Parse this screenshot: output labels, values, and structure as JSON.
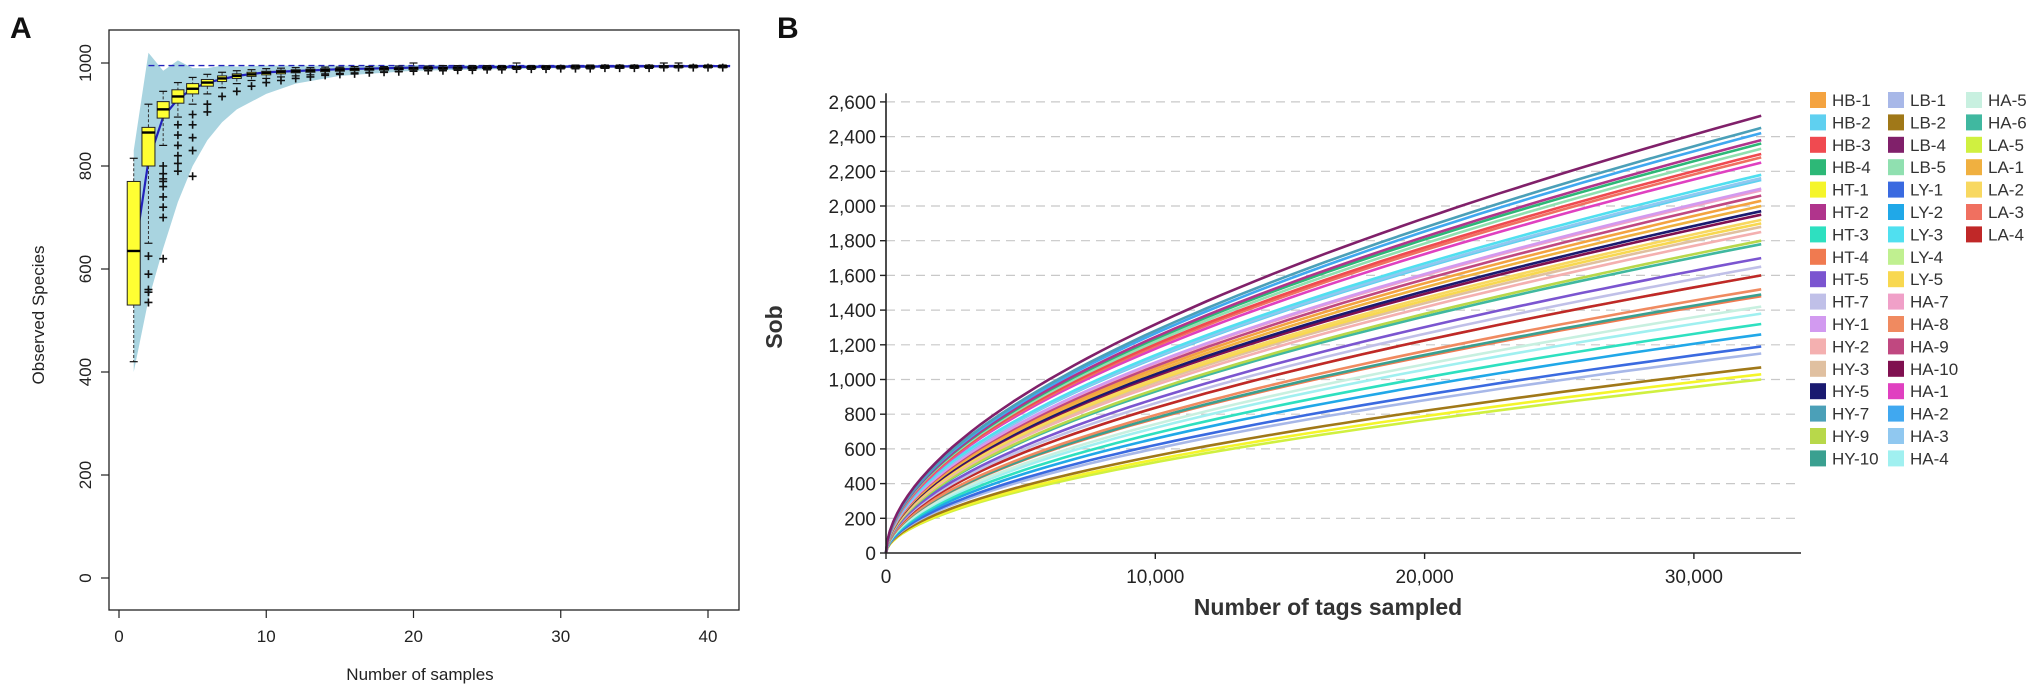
{
  "panels": {
    "a": "A",
    "b": "B"
  },
  "chart_data": [
    {
      "type": "box",
      "panel": "A",
      "title": "",
      "xlabel": "Number of samples",
      "ylabel": "Observed Species",
      "xlim": [
        0,
        42
      ],
      "ylim": [
        -20,
        1030
      ],
      "xticks": [
        0,
        10,
        20,
        30,
        40
      ],
      "yticks": [
        0,
        200,
        400,
        600,
        800,
        1000
      ],
      "colors": {
        "box": "#ffff33",
        "band": "#a9d4e0",
        "mean_line": "#2222bb",
        "median": "#000000"
      },
      "band": {
        "x": [
          1,
          2,
          3,
          4,
          5,
          6,
          7,
          8,
          10,
          12,
          15,
          20,
          30,
          41.5
        ],
        "lower": [
          400,
          540,
          640,
          730,
          800,
          850,
          885,
          910,
          940,
          960,
          975,
          985,
          990,
          993
        ],
        "upper": [
          830,
          1020,
          985,
          1005,
          990,
          990,
          995,
          993,
          995,
          995,
          995,
          996,
          996,
          996
        ]
      },
      "mean_curve": {
        "x": [
          1,
          2,
          3,
          4,
          5,
          6,
          8,
          10,
          15,
          20,
          30,
          41.5
        ],
        "y": [
          620,
          810,
          895,
          930,
          950,
          962,
          975,
          982,
          988,
          991,
          993,
          994
        ]
      },
      "boxes": [
        {
          "x": 1,
          "q1": 530,
          "median": 635,
          "q3": 770,
          "whisker_low": 420,
          "whisker_high": 815,
          "outliers": []
        },
        {
          "x": 2,
          "q1": 800,
          "median": 865,
          "q3": 875,
          "whisker_low": 650,
          "whisker_high": 920,
          "outliers": [
            625,
            590,
            560,
            555,
            535
          ]
        },
        {
          "x": 3,
          "q1": 893,
          "median": 910,
          "q3": 925,
          "whisker_low": 840,
          "whisker_high": 945,
          "outliers": [
            800,
            785,
            775,
            770,
            760,
            740,
            720,
            700,
            620
          ]
        },
        {
          "x": 4,
          "q1": 922,
          "median": 935,
          "q3": 948,
          "whisker_low": 895,
          "whisker_high": 962,
          "outliers": [
            880,
            860,
            840,
            820,
            805,
            790
          ]
        },
        {
          "x": 5,
          "q1": 940,
          "median": 950,
          "q3": 960,
          "whisker_low": 920,
          "whisker_high": 972,
          "outliers": [
            900,
            880,
            855,
            830,
            780
          ]
        },
        {
          "x": 6,
          "q1": 955,
          "median": 962,
          "q3": 968,
          "whisker_low": 940,
          "whisker_high": 978,
          "outliers": [
            920,
            905
          ]
        },
        {
          "x": 7,
          "q1": 964,
          "median": 970,
          "q3": 975,
          "whisker_low": 952,
          "whisker_high": 982,
          "outliers": [
            935
          ]
        },
        {
          "x": 8,
          "q1": 970,
          "median": 975,
          "q3": 979,
          "whisker_low": 960,
          "whisker_high": 985,
          "outliers": [
            945
          ]
        },
        {
          "x": 9,
          "q1": 974,
          "median": 978,
          "q3": 982,
          "whisker_low": 966,
          "whisker_high": 987,
          "outliers": [
            955
          ]
        },
        {
          "x": 10,
          "q1": 977,
          "median": 981,
          "q3": 984,
          "whisker_low": 970,
          "whisker_high": 989,
          "outliers": [
            962
          ]
        },
        {
          "x": 11,
          "q1": 979,
          "median": 983,
          "q3": 986,
          "whisker_low": 973,
          "whisker_high": 990,
          "outliers": [
            966
          ]
        },
        {
          "x": 12,
          "q1": 981,
          "median": 984,
          "q3": 987,
          "whisker_low": 975,
          "whisker_high": 991,
          "outliers": [
            970
          ]
        },
        {
          "x": 13,
          "q1": 982,
          "median": 985,
          "q3": 988,
          "whisker_low": 977,
          "whisker_high": 991,
          "outliers": [
            973
          ]
        },
        {
          "x": 14,
          "q1": 983,
          "median": 986,
          "q3": 989,
          "whisker_low": 979,
          "whisker_high": 992,
          "outliers": [
            976
          ]
        },
        {
          "x": 15,
          "q1": 984,
          "median": 987,
          "q3": 990,
          "whisker_low": 980,
          "whisker_high": 992,
          "outliers": [
            978
          ]
        },
        {
          "x": 16,
          "q1": 985,
          "median": 988,
          "q3": 990,
          "whisker_low": 981,
          "whisker_high": 993,
          "outliers": [
            979
          ]
        },
        {
          "x": 17,
          "q1": 986,
          "median": 988,
          "q3": 990,
          "whisker_low": 982,
          "whisker_high": 993,
          "outliers": [
            981
          ]
        },
        {
          "x": 18,
          "q1": 986,
          "median": 989,
          "q3": 991,
          "whisker_low": 983,
          "whisker_high": 993,
          "outliers": [
            982
          ]
        },
        {
          "x": 19,
          "q1": 987,
          "median": 989,
          "q3": 991,
          "whisker_low": 984,
          "whisker_high": 994,
          "outliers": [
            983
          ]
        },
        {
          "x": 20,
          "q1": 987,
          "median": 990,
          "q3": 992,
          "whisker_low": 985,
          "whisker_high": 1000,
          "outliers": [
            984
          ]
        },
        {
          "x": 21,
          "q1": 988,
          "median": 990,
          "q3": 992,
          "whisker_low": 985,
          "whisker_high": 994,
          "outliers": [
            985
          ]
        },
        {
          "x": 22,
          "q1": 988,
          "median": 990,
          "q3": 992,
          "whisker_low": 986,
          "whisker_high": 995,
          "outliers": [
            985
          ]
        },
        {
          "x": 23,
          "q1": 989,
          "median": 991,
          "q3": 992,
          "whisker_low": 986,
          "whisker_high": 995,
          "outliers": [
            986
          ]
        },
        {
          "x": 24,
          "q1": 989,
          "median": 991,
          "q3": 993,
          "whisker_low": 987,
          "whisker_high": 995,
          "outliers": [
            986
          ]
        },
        {
          "x": 25,
          "q1": 989,
          "median": 991,
          "q3": 993,
          "whisker_low": 987,
          "whisker_high": 995,
          "outliers": [
            987
          ]
        },
        {
          "x": 26,
          "q1": 990,
          "median": 992,
          "q3": 993,
          "whisker_low": 988,
          "whisker_high": 995,
          "outliers": [
            987
          ]
        },
        {
          "x": 27,
          "q1": 990,
          "median": 992,
          "q3": 993,
          "whisker_low": 988,
          "whisker_high": 1000,
          "outliers": [
            988
          ]
        },
        {
          "x": 28,
          "q1": 990,
          "median": 992,
          "q3": 993,
          "whisker_low": 988,
          "whisker_high": 995,
          "outliers": [
            988
          ]
        },
        {
          "x": 29,
          "q1": 990,
          "median": 992,
          "q3": 994,
          "whisker_low": 989,
          "whisker_high": 995,
          "outliers": [
            988
          ]
        },
        {
          "x": 30,
          "q1": 991,
          "median": 992,
          "q3": 994,
          "whisker_low": 989,
          "whisker_high": 995,
          "outliers": [
            989
          ]
        },
        {
          "x": 31,
          "q1": 991,
          "median": 993,
          "q3": 994,
          "whisker_low": 989,
          "whisker_high": 996,
          "outliers": [
            989
          ]
        },
        {
          "x": 32,
          "q1": 991,
          "median": 993,
          "q3": 994,
          "whisker_low": 990,
          "whisker_high": 996,
          "outliers": [
            989
          ]
        },
        {
          "x": 33,
          "q1": 991,
          "median": 993,
          "q3": 994,
          "whisker_low": 990,
          "whisker_high": 996,
          "outliers": [
            990
          ]
        },
        {
          "x": 34,
          "q1": 992,
          "median": 993,
          "q3": 994,
          "whisker_low": 990,
          "whisker_high": 996,
          "outliers": [
            990
          ]
        },
        {
          "x": 35,
          "q1": 992,
          "median": 993,
          "q3": 994,
          "whisker_low": 990,
          "whisker_high": 996,
          "outliers": [
            990
          ]
        },
        {
          "x": 36,
          "q1": 992,
          "median": 993,
          "q3": 995,
          "whisker_low": 991,
          "whisker_high": 996,
          "outliers": [
            990
          ]
        },
        {
          "x": 37,
          "q1": 992,
          "median": 993,
          "q3": 995,
          "whisker_low": 991,
          "whisker_high": 1000,
          "outliers": [
            991
          ]
        },
        {
          "x": 38,
          "q1": 992,
          "median": 994,
          "q3": 995,
          "whisker_low": 991,
          "whisker_high": 1000,
          "outliers": [
            991
          ]
        },
        {
          "x": 39,
          "q1": 992,
          "median": 994,
          "q3": 995,
          "whisker_low": 991,
          "whisker_high": 996,
          "outliers": [
            991
          ]
        },
        {
          "x": 40,
          "q1": 993,
          "median": 994,
          "q3": 995,
          "whisker_low": 991,
          "whisker_high": 996,
          "outliers": [
            991
          ]
        },
        {
          "x": 41,
          "q1": 993,
          "median": 994,
          "q3": 995,
          "whisker_low": 992,
          "whisker_high": 996,
          "outliers": [
            991
          ]
        }
      ]
    },
    {
      "type": "line",
      "panel": "B",
      "title": "",
      "xlabel": "Number of tags sampled",
      "ylabel": "Sob",
      "xlim": [
        0,
        34000
      ],
      "ylim": [
        0,
        2650
      ],
      "xticks": [
        0,
        10000,
        20000,
        30000
      ],
      "xtick_labels": [
        "0",
        "10,000",
        "20,000",
        "30,000"
      ],
      "yticks": [
        0,
        200,
        400,
        600,
        800,
        1000,
        1200,
        1400,
        1600,
        1800,
        2000,
        2200,
        2400,
        2600
      ],
      "ytick_labels": [
        "0",
        "200",
        "400",
        "600",
        "800",
        "1,000",
        "1,200",
        "1,400",
        "1,600",
        "1,800",
        "2,000",
        "2,200",
        "2,400",
        "2,600"
      ],
      "grid": "horizontal dashed",
      "x_end": 32500,
      "curve_model": "y = final * (x / x_end)^0.55",
      "legend_position": "right",
      "series": [
        {
          "name": "HB-1",
          "color": "#f4a340",
          "final": 2030
        },
        {
          "name": "HB-2",
          "color": "#5fd0f0",
          "final": 2150
        },
        {
          "name": "HB-3",
          "color": "#f04a50",
          "final": 2300
        },
        {
          "name": "HB-4",
          "color": "#2db877",
          "final": 2360
        },
        {
          "name": "HT-1",
          "color": "#f5f52a",
          "final": 1030
        },
        {
          "name": "HT-2",
          "color": "#b0348c",
          "final": 2380
        },
        {
          "name": "HT-3",
          "color": "#2ee0c0",
          "final": 1320
        },
        {
          "name": "HT-4",
          "color": "#f07a50",
          "final": 1480
        },
        {
          "name": "HT-5",
          "color": "#7b55d0",
          "final": 1700
        },
        {
          "name": "HT-7",
          "color": "#c0c0e8",
          "final": 1650
        },
        {
          "name": "HY-1",
          "color": "#d29af0",
          "final": 2100
        },
        {
          "name": "HY-2",
          "color": "#f4b0b0",
          "final": 1850
        },
        {
          "name": "HY-3",
          "color": "#e0c0a0",
          "final": 1880
        },
        {
          "name": "HY-5",
          "color": "#1a1a70",
          "final": 1970
        },
        {
          "name": "HY-7",
          "color": "#4ba0b8",
          "final": 2450
        },
        {
          "name": "HY-9",
          "color": "#b8d84a",
          "final": 1800
        },
        {
          "name": "HY-10",
          "color": "#3aa090",
          "final": 1490
        },
        {
          "name": "LB-1",
          "color": "#a8b8e8",
          "final": 1150
        },
        {
          "name": "LB-2",
          "color": "#a07818",
          "final": 1070
        },
        {
          "name": "LB-4",
          "color": "#80206a",
          "final": 2520
        },
        {
          "name": "LB-5",
          "color": "#90e0b0",
          "final": 2330
        },
        {
          "name": "LY-1",
          "color": "#3a6ae0",
          "final": 1190
        },
        {
          "name": "LY-2",
          "color": "#20a8e8",
          "final": 1260
        },
        {
          "name": "LY-3",
          "color": "#50e0f0",
          "final": 2180
        },
        {
          "name": "LY-4",
          "color": "#c0f090",
          "final": 1600
        },
        {
          "name": "LY-5",
          "color": "#f8d850",
          "final": 1900
        },
        {
          "name": "HA-7",
          "color": "#f0a0c8",
          "final": 2090
        },
        {
          "name": "HA-8",
          "color": "#f08a60",
          "final": 1520
        },
        {
          "name": "HA-9",
          "color": "#c04880",
          "final": 2060
        },
        {
          "name": "HA-10",
          "color": "#801050",
          "final": 1950
        },
        {
          "name": "HA-1",
          "color": "#e040c0",
          "final": 2250
        },
        {
          "name": "HA-2",
          "color": "#40a8f0",
          "final": 2420
        },
        {
          "name": "HA-3",
          "color": "#90c8f0",
          "final": 2160
        },
        {
          "name": "HA-4",
          "color": "#a0f0f0",
          "final": 1380
        },
        {
          "name": "HA-5",
          "color": "#c8f0e0",
          "final": 1420
        },
        {
          "name": "HA-6",
          "color": "#40b8a0",
          "final": 1780
        },
        {
          "name": "LA-5",
          "color": "#d0f040",
          "final": 1000
        },
        {
          "name": "LA-1",
          "color": "#f0b040",
          "final": 2000
        },
        {
          "name": "LA-2",
          "color": "#f8d860",
          "final": 1920
        },
        {
          "name": "LA-3",
          "color": "#f07060",
          "final": 2280
        },
        {
          "name": "LA-4",
          "color": "#c02828",
          "final": 1600
        }
      ]
    }
  ]
}
